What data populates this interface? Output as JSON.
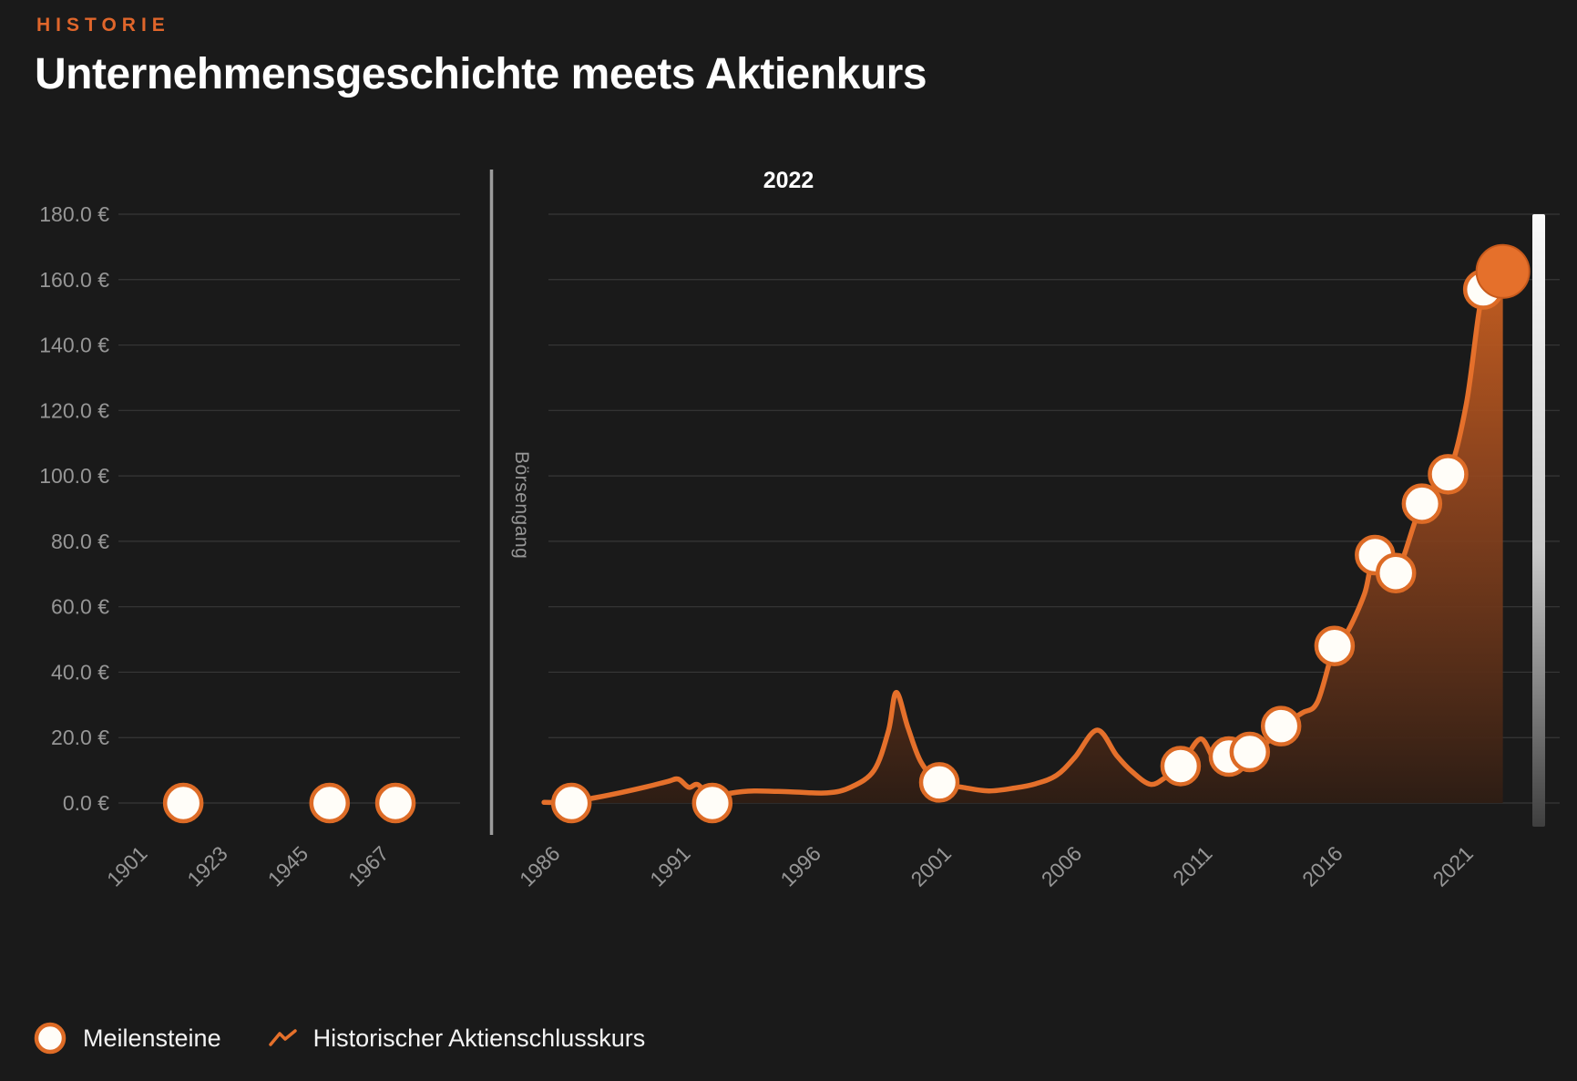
{
  "header": {
    "eyebrow": "HISTORIE",
    "title": "Unternehmensgeschichte meets Aktienkurs"
  },
  "legend": {
    "milestones": "Meilensteine",
    "price": "Historischer Aktienschlusskurs"
  },
  "colors": {
    "background": "#1A1A1A",
    "accent_orange": "#E5702B",
    "line": "#E5702B",
    "milestone_fill": "#FFFDF8",
    "milestone_stroke": "#DD6B26",
    "grid": "#373737",
    "axis_text": "#969696",
    "divider": "#9C9C9C",
    "area_top": "#D96721",
    "area_mid": "#96471E",
    "area_bottom": "#2E1D14",
    "scrubber_top": "#FAFAFA",
    "scrubber_bottom": "#3F3F3F",
    "title_text": "#FFFFFF"
  },
  "chart_data": {
    "type": "line",
    "title": "2022",
    "ylabel": "",
    "xlabel": "",
    "currency": "€",
    "ylim": [
      0,
      180
    ],
    "y_ticks": [
      0,
      20,
      40,
      60,
      80,
      100,
      120,
      140,
      160,
      180
    ],
    "y_tick_suffix": ".0 €",
    "grid": true,
    "legend_position": "bottom-left",
    "divider_label": "Börsengang",
    "left_panel": {
      "x_ticks": [
        1901,
        1923,
        1945,
        1967
      ],
      "milestones": [
        {
          "year": 1912,
          "value": 0
        },
        {
          "year": 1952,
          "value": 0
        },
        {
          "year": 1970,
          "value": 0
        }
      ]
    },
    "right_panel": {
      "x_ticks": [
        1986,
        1991,
        1996,
        2001,
        2006,
        2011,
        2016,
        2021
      ],
      "series_name": "Historischer Aktienschlusskurs",
      "series": [
        [
          1985.55,
          0.2
        ],
        [
          1986.6,
          0.3
        ],
        [
          1987.5,
          1.6
        ],
        [
          1988.5,
          3.2
        ],
        [
          1989.5,
          5.0
        ],
        [
          1990.3,
          6.6
        ],
        [
          1990.7,
          7.3
        ],
        [
          1991.1,
          4.8
        ],
        [
          1991.45,
          5.6
        ],
        [
          1992.0,
          1.5
        ],
        [
          1992.7,
          3.0
        ],
        [
          1993.6,
          3.7
        ],
        [
          1995.0,
          3.4
        ],
        [
          1996.4,
          3.1
        ],
        [
          1997.3,
          4.8
        ],
        [
          1998.2,
          10.0
        ],
        [
          1998.75,
          22.0
        ],
        [
          1999.05,
          33.8
        ],
        [
          1999.5,
          23.0
        ],
        [
          2000.0,
          12.5
        ],
        [
          2000.7,
          6.3
        ],
        [
          2001.6,
          4.8
        ],
        [
          2002.6,
          3.7
        ],
        [
          2003.6,
          4.6
        ],
        [
          2004.4,
          5.9
        ],
        [
          2005.2,
          8.5
        ],
        [
          2005.9,
          14.0
        ],
        [
          2006.75,
          22.3
        ],
        [
          2007.5,
          14.5
        ],
        [
          2008.1,
          9.5
        ],
        [
          2008.8,
          5.7
        ],
        [
          2009.4,
          8.0
        ],
        [
          2009.95,
          11.3
        ],
        [
          2010.7,
          19.6
        ],
        [
          2011.25,
          13.4
        ],
        [
          2011.8,
          14.2
        ],
        [
          2012.6,
          15.6
        ],
        [
          2013.2,
          18.0
        ],
        [
          2013.8,
          23.5
        ],
        [
          2014.6,
          27.5
        ],
        [
          2015.2,
          31.0
        ],
        [
          2015.85,
          48.0
        ],
        [
          2016.35,
          52.5
        ],
        [
          2017.0,
          64.0
        ],
        [
          2017.4,
          75.8
        ],
        [
          2018.2,
          70.3
        ],
        [
          2019.2,
          91.5
        ],
        [
          2020.2,
          100.5
        ],
        [
          2020.9,
          122.0
        ],
        [
          2021.55,
          157.0
        ],
        [
          2022.3,
          162.5
        ]
      ],
      "milestones": [
        {
          "year": 1986,
          "pos": 1986.6,
          "value": 0
        },
        {
          "year": 1992,
          "pos": 1992.0,
          "value": 0
        },
        {
          "year": 2001,
          "pos": 2000.7,
          "value": 6.3
        },
        {
          "year": 2010,
          "pos": 2009.95,
          "value": 11.3
        },
        {
          "year": 2012,
          "pos": 2011.8,
          "value": 14.2
        },
        {
          "year": 2013,
          "pos": 2012.6,
          "value": 15.6
        },
        {
          "year": 2014,
          "pos": 2013.8,
          "value": 23.5
        },
        {
          "year": 2016,
          "pos": 2015.85,
          "value": 48.0
        },
        {
          "year": 2017,
          "pos": 2017.4,
          "value": 75.8
        },
        {
          "year": 2018,
          "pos": 2018.2,
          "value": 70.3
        },
        {
          "year": 2019,
          "pos": 2019.2,
          "value": 91.5
        },
        {
          "year": 2020,
          "pos": 2020.2,
          "value": 100.5
        },
        {
          "year": 2021,
          "pos": 2021.55,
          "value": 157.0
        }
      ],
      "highlight": {
        "year": 2022,
        "pos": 2022.3,
        "value": 162.5
      }
    }
  }
}
